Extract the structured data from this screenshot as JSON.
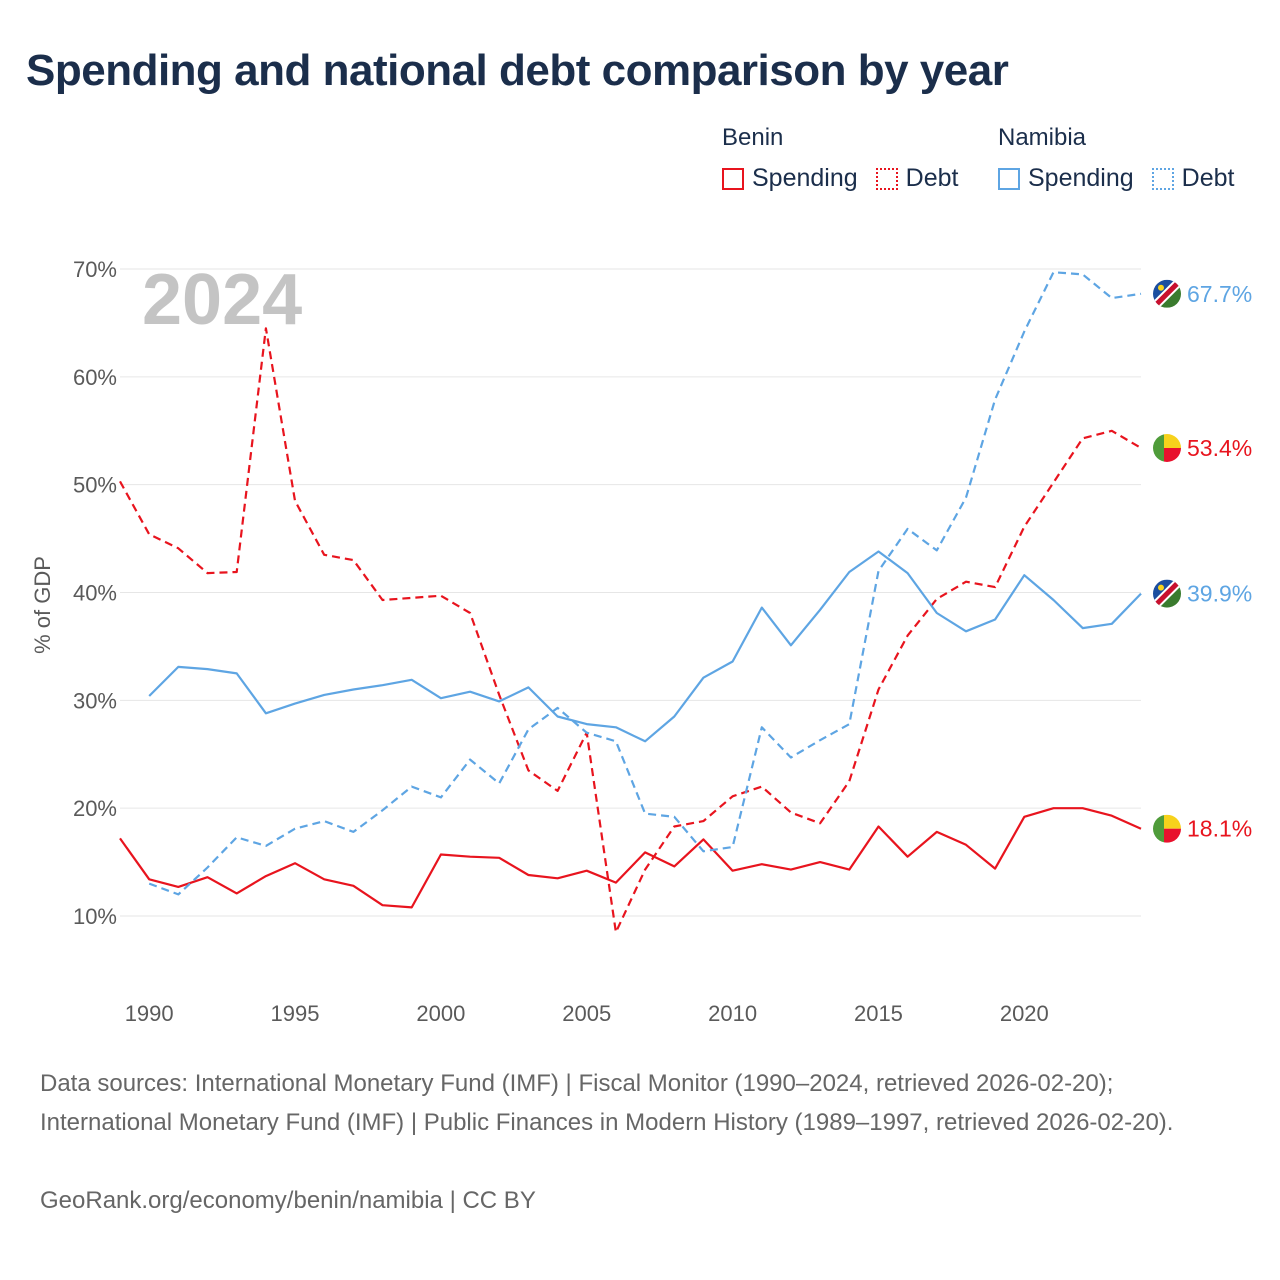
{
  "title": "Spending and national debt comparison by year",
  "legend": {
    "groups": [
      {
        "name": "Benin",
        "color": "#e8141e",
        "items": [
          {
            "label": "Spending",
            "style": "solid"
          },
          {
            "label": "Debt",
            "style": "dotted"
          }
        ]
      },
      {
        "name": "Namibia",
        "color": "#5ea5e3",
        "items": [
          {
            "label": "Spending",
            "style": "solid"
          },
          {
            "label": "Debt",
            "style": "dotted"
          }
        ]
      }
    ]
  },
  "chart_data": {
    "type": "line",
    "year_label": "2024",
    "ylabel": "% of GDP",
    "xlabel": "",
    "xlim": [
      1989,
      2024
    ],
    "ylim": [
      3,
      75
    ],
    "x_ticks": [
      1990,
      1995,
      2000,
      2005,
      2010,
      2015,
      2020
    ],
    "y_ticks": [
      10,
      20,
      30,
      40,
      50,
      60,
      70
    ],
    "y_tick_labels": [
      "10%",
      "20%",
      "30%",
      "40%",
      "50%",
      "60%",
      "70%"
    ],
    "gridlines": true,
    "series": [
      {
        "name": "Benin Spending",
        "country": "Benin",
        "measure": "Spending",
        "color": "#e8141e",
        "dash": "solid",
        "x": [
          1989,
          1990,
          1991,
          1992,
          1993,
          1994,
          1995,
          1996,
          1997,
          1998,
          1999,
          2000,
          2001,
          2002,
          2003,
          2004,
          2005,
          2006,
          2007,
          2008,
          2009,
          2010,
          2011,
          2012,
          2013,
          2014,
          2015,
          2016,
          2017,
          2018,
          2019,
          2020,
          2021,
          2022,
          2023,
          2024
        ],
        "values": [
          17.2,
          13.4,
          12.7,
          13.6,
          12.1,
          13.7,
          14.9,
          13.4,
          12.8,
          11.0,
          10.8,
          15.7,
          15.5,
          15.4,
          13.8,
          13.5,
          14.2,
          13.1,
          15.9,
          14.6,
          17.1,
          14.2,
          14.8,
          14.3,
          15.0,
          14.3,
          18.3,
          15.5,
          17.8,
          16.6,
          14.4,
          19.2,
          20.0,
          20.0,
          19.3,
          18.1
        ],
        "end_label": "18.1%"
      },
      {
        "name": "Benin Debt",
        "country": "Benin",
        "measure": "Debt",
        "color": "#e8141e",
        "dash": "dashed",
        "x": [
          1989,
          1990,
          1991,
          1992,
          1993,
          1994,
          1995,
          1996,
          1997,
          1998,
          1999,
          2000,
          2001,
          2002,
          2003,
          2004,
          2005,
          2006,
          2007,
          2008,
          2009,
          2010,
          2011,
          2012,
          2013,
          2014,
          2015,
          2016,
          2017,
          2018,
          2019,
          2020,
          2021,
          2022,
          2023,
          2024
        ],
        "values": [
          50.3,
          45.4,
          44.1,
          41.8,
          41.9,
          64.5,
          48.5,
          43.5,
          43.0,
          39.3,
          39.5,
          39.7,
          38.1,
          30.5,
          23.5,
          21.6,
          27.0,
          8.5,
          14.3,
          18.3,
          18.8,
          21.1,
          22.0,
          19.6,
          18.6,
          22.5,
          31.0,
          36.0,
          39.4,
          41.0,
          40.5,
          46.1,
          50.2,
          54.3,
          55.0,
          53.4
        ],
        "end_label": "53.4%"
      },
      {
        "name": "Namibia Spending",
        "country": "Namibia",
        "measure": "Spending",
        "color": "#5ea5e3",
        "dash": "solid",
        "x": [
          1990,
          1991,
          1992,
          1993,
          1994,
          1995,
          1996,
          1997,
          1998,
          1999,
          2000,
          2001,
          2002,
          2003,
          2004,
          2005,
          2006,
          2007,
          2008,
          2009,
          2010,
          2011,
          2012,
          2013,
          2014,
          2015,
          2016,
          2017,
          2018,
          2019,
          2020,
          2021,
          2022,
          2023,
          2024
        ],
        "values": [
          30.4,
          33.1,
          32.9,
          32.5,
          28.8,
          29.7,
          30.5,
          31.0,
          31.4,
          31.9,
          30.2,
          30.8,
          29.9,
          31.2,
          28.5,
          27.8,
          27.5,
          26.2,
          28.5,
          32.1,
          33.6,
          38.6,
          35.1,
          38.4,
          41.9,
          43.8,
          41.8,
          38.1,
          36.4,
          37.5,
          41.6,
          39.3,
          36.7,
          37.1,
          39.9
        ],
        "end_label": "39.9%"
      },
      {
        "name": "Namibia Debt",
        "country": "Namibia",
        "measure": "Debt",
        "color": "#5ea5e3",
        "dash": "dashed",
        "x": [
          1990,
          1991,
          1992,
          1993,
          1994,
          1995,
          1996,
          1997,
          1998,
          1999,
          2000,
          2001,
          2002,
          2003,
          2004,
          2005,
          2006,
          2007,
          2008,
          2009,
          2010,
          2011,
          2012,
          2013,
          2014,
          2015,
          2016,
          2017,
          2018,
          2019,
          2020,
          2021,
          2022,
          2023,
          2024
        ],
        "values": [
          13.0,
          12.0,
          14.5,
          17.3,
          16.5,
          18.1,
          18.8,
          17.8,
          19.8,
          22.0,
          21.0,
          24.5,
          22.3,
          27.3,
          29.3,
          27.0,
          26.2,
          19.5,
          19.2,
          16.0,
          16.4,
          27.5,
          24.7,
          26.3,
          27.8,
          42.0,
          45.9,
          43.9,
          48.8,
          57.9,
          64.2,
          69.7,
          69.5,
          67.3,
          67.7
        ],
        "end_label": "67.7%"
      }
    ]
  },
  "footer": {
    "sources": "Data sources: International Monetary Fund (IMF) | Fiscal Monitor (1990–2024, retrieved 2026-02-20); International Monetary Fund (IMF) | Public Finances in Modern History (1989–1997, retrieved 2026-02-20).",
    "credit": "GeoRank.org/economy/benin/namibia | CC BY"
  }
}
